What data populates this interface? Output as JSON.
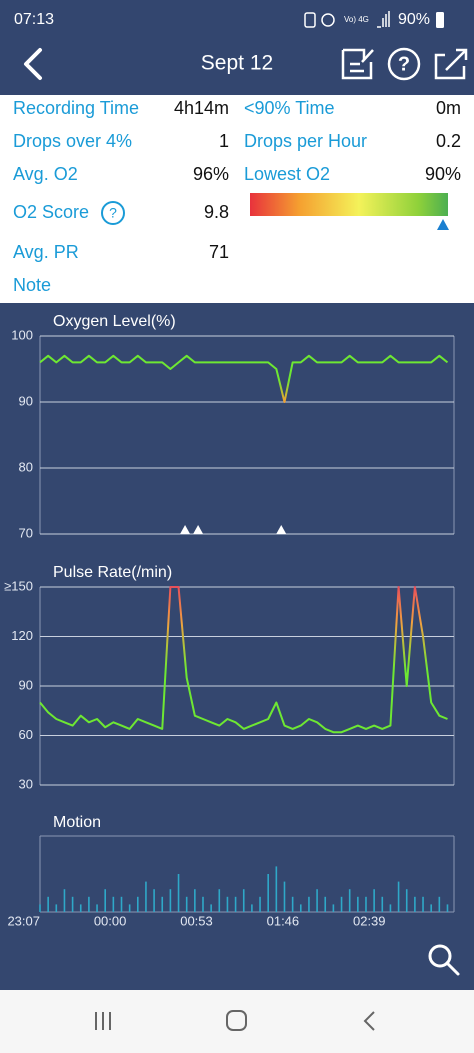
{
  "status_bar": {
    "time": "07:13",
    "battery": "90%"
  },
  "header": {
    "title": "Sept 12"
  },
  "stats": {
    "left": [
      {
        "label": "Recording Time",
        "value": "4h14m"
      },
      {
        "label": "Drops over 4%",
        "value": "1"
      },
      {
        "label": "Avg. O2",
        "value": "96%"
      },
      {
        "label": "O2 Score",
        "value": "9.8"
      },
      {
        "label": "Avg. PR",
        "value": "71"
      },
      {
        "label": "Note"
      }
    ],
    "right": [
      {
        "label": "<90% Time",
        "value": "0m"
      },
      {
        "label": "Drops per Hour",
        "value": "0.2"
      },
      {
        "label": "Lowest O2",
        "value": "90%"
      }
    ]
  },
  "chart_data": [
    {
      "type": "line",
      "title": "Oxygen Level(%)",
      "x": [
        0,
        5,
        10,
        15,
        20,
        25,
        30,
        35,
        40,
        45,
        50,
        55,
        60,
        65,
        70,
        75,
        80,
        85,
        90,
        95,
        100,
        105,
        110,
        115,
        120,
        125,
        130,
        135,
        140,
        145,
        150,
        155,
        160,
        165,
        170,
        175,
        180,
        185,
        190,
        195,
        200,
        205,
        210,
        215,
        220,
        225,
        230,
        235,
        240,
        245,
        250
      ],
      "xlim": [
        0,
        254
      ],
      "ylim": [
        70,
        100
      ],
      "yticks": [
        70,
        80,
        90,
        100
      ],
      "grid": true,
      "series": [
        {
          "color": "#6ee832",
          "values": [
            96,
            97,
            96,
            97,
            96,
            96,
            97,
            96,
            96,
            97,
            96,
            96,
            97,
            96,
            96,
            96,
            95,
            96,
            97,
            96,
            96,
            96,
            96,
            96,
            96,
            96,
            96,
            96,
            96,
            95,
            90,
            96,
            96,
            97,
            96,
            96,
            96,
            96,
            97,
            96,
            96,
            96,
            96,
            97,
            96,
            96,
            96,
            96,
            96,
            97,
            96
          ]
        }
      ],
      "drop_markers_x": [
        89,
        97,
        148
      ]
    },
    {
      "type": "line",
      "title": "Pulse Rate(/min)",
      "x": [
        0,
        5,
        10,
        15,
        20,
        25,
        30,
        35,
        40,
        45,
        50,
        55,
        60,
        65,
        70,
        75,
        80,
        85,
        90,
        95,
        100,
        105,
        110,
        115,
        120,
        125,
        130,
        135,
        140,
        145,
        150,
        155,
        160,
        165,
        170,
        175,
        180,
        185,
        190,
        195,
        200,
        205,
        210,
        215,
        220,
        225,
        230,
        235,
        240,
        245,
        250
      ],
      "xlim": [
        0,
        254
      ],
      "ylim": [
        30,
        150
      ],
      "yticks": [
        30,
        60,
        90,
        120,
        {
          "value": 150,
          "label": "≥150"
        }
      ],
      "grid": true,
      "series": [
        {
          "color": "#6ee832",
          "values": [
            80,
            74,
            70,
            68,
            66,
            72,
            68,
            70,
            65,
            68,
            66,
            64,
            70,
            68,
            66,
            64,
            150,
            150,
            95,
            72,
            70,
            68,
            66,
            70,
            68,
            64,
            66,
            68,
            70,
            80,
            66,
            64,
            66,
            70,
            68,
            64,
            62,
            62,
            64,
            66,
            64,
            66,
            64,
            66,
            150,
            90,
            150,
            120,
            80,
            72,
            70
          ]
        }
      ]
    },
    {
      "type": "bar",
      "title": "Motion",
      "x": [
        0,
        5,
        10,
        15,
        20,
        25,
        30,
        35,
        40,
        45,
        50,
        55,
        60,
        65,
        70,
        75,
        80,
        85,
        90,
        95,
        100,
        105,
        110,
        115,
        120,
        125,
        130,
        135,
        140,
        145,
        150,
        155,
        160,
        165,
        170,
        175,
        180,
        185,
        190,
        195,
        200,
        205,
        210,
        215,
        220,
        225,
        230,
        235,
        240,
        245,
        250
      ],
      "xlim": [
        0,
        254
      ],
      "ylim": [
        0,
        10
      ],
      "xticks": [
        {
          "value": 0,
          "label": "23:07"
        },
        {
          "value": 53,
          "label": "00:00"
        },
        {
          "value": 106,
          "label": "00:53"
        },
        {
          "value": 159,
          "label": "01:46"
        },
        {
          "value": 212,
          "label": "02:39"
        }
      ],
      "color": "#2fa8c8",
      "values": [
        1,
        2,
        1,
        3,
        2,
        1,
        2,
        1,
        3,
        2,
        2,
        1,
        2,
        4,
        3,
        2,
        3,
        5,
        2,
        3,
        2,
        1,
        3,
        2,
        2,
        3,
        1,
        2,
        5,
        6,
        4,
        2,
        1,
        2,
        3,
        2,
        1,
        2,
        3,
        2,
        2,
        3,
        2,
        1,
        4,
        3,
        2,
        2,
        1,
        2,
        1
      ]
    }
  ]
}
